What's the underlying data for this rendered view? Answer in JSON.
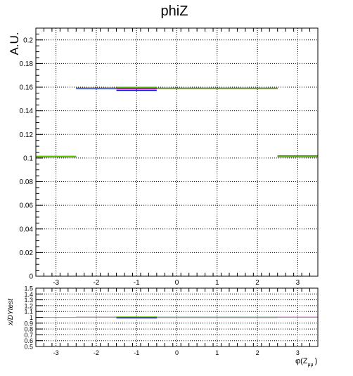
{
  "chart_data": [
    {
      "type": "line",
      "title": "phiZ",
      "ylabel": "A.U.",
      "xlabel": "",
      "xlim": [
        -3.5,
        3.5
      ],
      "ylim": [
        0,
        0.21
      ],
      "x_ticks": [
        "-3",
        "-2",
        "-1",
        "0",
        "1",
        "2",
        "3"
      ],
      "x_tick_values": [
        -3,
        -2,
        -1,
        0,
        1,
        2,
        3
      ],
      "y_ticks": [
        "0",
        "0.02",
        "0.04",
        "0.06",
        "0.08",
        "0.1",
        "0.12",
        "0.14",
        "0.16",
        "0.18",
        "0.2"
      ],
      "y_tick_values": [
        0,
        0.02,
        0.04,
        0.06,
        0.08,
        0.1,
        0.12,
        0.14,
        0.16,
        0.18,
        0.2
      ],
      "grid": true,
      "bin_edges": [
        -3.5,
        -2.5,
        -1.5,
        -0.5,
        2.5,
        3.5
      ],
      "series": [
        {
          "color": "#006633",
          "values": [
            0.1015,
            0.159,
            0.1595,
            0.1592,
            0.101
          ]
        },
        {
          "color": "#00aaaa",
          "values": [
            0.1012,
            0.1588,
            0.159,
            0.159,
            0.1015
          ]
        },
        {
          "color": "#990099",
          "values": [
            0.101,
            0.1593,
            0.1585,
            0.1588,
            0.1018
          ]
        },
        {
          "color": "#0000cc",
          "values": [
            0.1013,
            0.1588,
            0.1573,
            0.159,
            0.1012
          ]
        },
        {
          "color": "#66cc00",
          "values": [
            0.1014,
            0.1592,
            0.16,
            0.1589,
            0.1013
          ]
        }
      ]
    },
    {
      "type": "line",
      "ylabel": "x/DYtest",
      "xlabel": "φ(Z_μμ)",
      "xlabel_main": "φ(Z",
      "xlabel_sub": "μμ",
      "xlabel_close": ")",
      "xlim": [
        -3.5,
        3.5
      ],
      "ylim": [
        0.5,
        1.5
      ],
      "x_ticks": [
        "-3",
        "-2",
        "-1",
        "0",
        "1",
        "2",
        "3"
      ],
      "x_tick_values": [
        -3,
        -2,
        -1,
        0,
        1,
        2,
        3
      ],
      "y_ticks": [
        "0.5",
        "0.6",
        "0.7",
        "0.8",
        "0.9",
        "1",
        "1.1",
        "1.2",
        "1.3",
        "1.4",
        "1.5"
      ],
      "y_tick_values": [
        0.5,
        0.6,
        0.7,
        0.8,
        0.9,
        1.0,
        1.1,
        1.2,
        1.3,
        1.4,
        1.5
      ],
      "grid": true,
      "bin_edges": [
        -3.5,
        -2.5,
        -1.5,
        -0.5,
        2.5,
        3.5
      ],
      "series": [
        {
          "color": "#006633",
          "values": [
            1.0,
            1.0,
            1.006,
            1.002,
            1.0
          ]
        },
        {
          "color": "#990099",
          "values": [
            1.0,
            1.002,
            0.995,
            0.998,
            1.002
          ]
        },
        {
          "color": "#0000cc",
          "values": [
            1.0,
            1.0,
            0.988,
            1.0,
            1.0
          ]
        },
        {
          "color": "#66cc00",
          "values": [
            1.0,
            1.001,
            1.008,
            0.999,
            1.0
          ]
        }
      ]
    }
  ]
}
